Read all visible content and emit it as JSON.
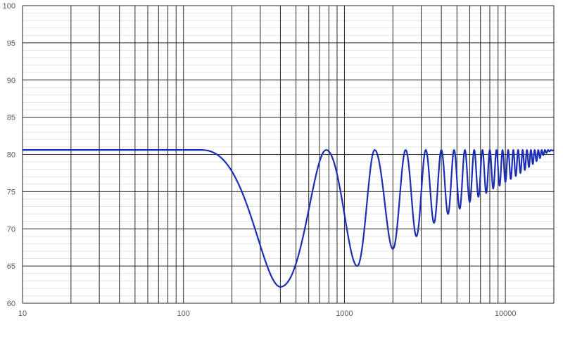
{
  "chart_data": {
    "type": "line",
    "title": "",
    "xlabel": "",
    "ylabel": "",
    "x_scale": "log",
    "xlim": [
      10,
      20000
    ],
    "ylim": [
      60,
      100
    ],
    "grid": true,
    "minor_y_grid": true,
    "line_color": "#1c2fb4",
    "x_tick_labels": [
      {
        "value": 10,
        "label": "10"
      },
      {
        "value": 100,
        "label": "100"
      },
      {
        "value": 1000,
        "label": "1000"
      },
      {
        "value": 10000,
        "label": "10000"
      }
    ],
    "y_tick_labels": [
      {
        "value": 60,
        "label": "60"
      },
      {
        "value": 65,
        "label": "65"
      },
      {
        "value": 70,
        "label": "70"
      },
      {
        "value": 75,
        "label": "75"
      },
      {
        "value": 80,
        "label": "80"
      },
      {
        "value": 85,
        "label": "85"
      },
      {
        "value": 90,
        "label": "90"
      },
      {
        "value": 95,
        "label": "95"
      },
      {
        "value": 100,
        "label": "100"
      }
    ],
    "series": [
      {
        "peak_level": 80.6,
        "flat_until_hz": 130,
        "peaks_hz": [
          770,
          1540,
          2400,
          3200,
          4000,
          4800,
          5600,
          6400,
          7200,
          8000,
          8800,
          9600,
          10400,
          11200,
          12000,
          12800,
          13600,
          14400,
          15200,
          16000,
          16800,
          17600,
          18400,
          19200,
          20000
        ],
        "notches": [
          {
            "x": 400,
            "y": 62.2
          },
          {
            "x": 1200,
            "y": 65.0
          },
          {
            "x": 2000,
            "y": 67.3
          },
          {
            "x": 2800,
            "y": 69.0
          },
          {
            "x": 3600,
            "y": 70.8
          },
          {
            "x": 4400,
            "y": 72.0
          },
          {
            "x": 5200,
            "y": 72.7
          },
          {
            "x": 6000,
            "y": 73.6
          },
          {
            "x": 6800,
            "y": 74.3
          },
          {
            "x": 7600,
            "y": 74.8
          },
          {
            "x": 8400,
            "y": 75.4
          },
          {
            "x": 9200,
            "y": 75.8
          },
          {
            "x": 10000,
            "y": 76.3
          },
          {
            "x": 10800,
            "y": 76.7
          },
          {
            "x": 11600,
            "y": 77.1
          },
          {
            "x": 12400,
            "y": 77.5
          },
          {
            "x": 13200,
            "y": 77.9
          },
          {
            "x": 14000,
            "y": 78.3
          },
          {
            "x": 14800,
            "y": 78.7
          },
          {
            "x": 15600,
            "y": 79.1
          },
          {
            "x": 16400,
            "y": 79.5
          },
          {
            "x": 17200,
            "y": 79.9
          },
          {
            "x": 18000,
            "y": 80.2
          },
          {
            "x": 18800,
            "y": 80.4
          },
          {
            "x": 19600,
            "y": 80.5
          }
        ]
      }
    ]
  }
}
